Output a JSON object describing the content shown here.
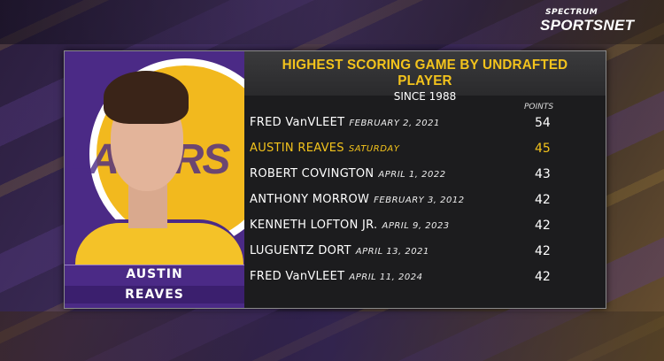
{
  "network_logo": {
    "line1": "SPECTRUM",
    "line2": "SPORTSNET"
  },
  "graphic": {
    "title": "HIGHEST SCORING GAME BY UNDRAFTED PLAYER",
    "subtitle": "SINCE 1988",
    "points_header": "POINTS",
    "player_photo": {
      "first_name": "AUSTIN",
      "last_name": "REAVES",
      "background_text": "LAKERS"
    },
    "highlight_color": "#f3c31c",
    "rows": [
      {
        "name": "FRED VanVLEET",
        "date": "FEBRUARY 2, 2021",
        "points": "54",
        "highlight": false
      },
      {
        "name": "AUSTIN REAVES",
        "date": "SATURDAY",
        "points": "45",
        "highlight": true
      },
      {
        "name": "ROBERT COVINGTON",
        "date": "APRIL 1, 2022",
        "points": "43",
        "highlight": false
      },
      {
        "name": "ANTHONY MORROW",
        "date": "FEBRUARY 3, 2012",
        "points": "42",
        "highlight": false
      },
      {
        "name": "KENNETH LOFTON JR.",
        "date": "APRIL 9, 2023",
        "points": "42",
        "highlight": false
      },
      {
        "name": "LUGUENTZ DORT",
        "date": "APRIL 13, 2021",
        "points": "42",
        "highlight": false
      },
      {
        "name": "FRED VanVLEET",
        "date": "APRIL 11, 2024",
        "points": "42",
        "highlight": false
      }
    ]
  }
}
